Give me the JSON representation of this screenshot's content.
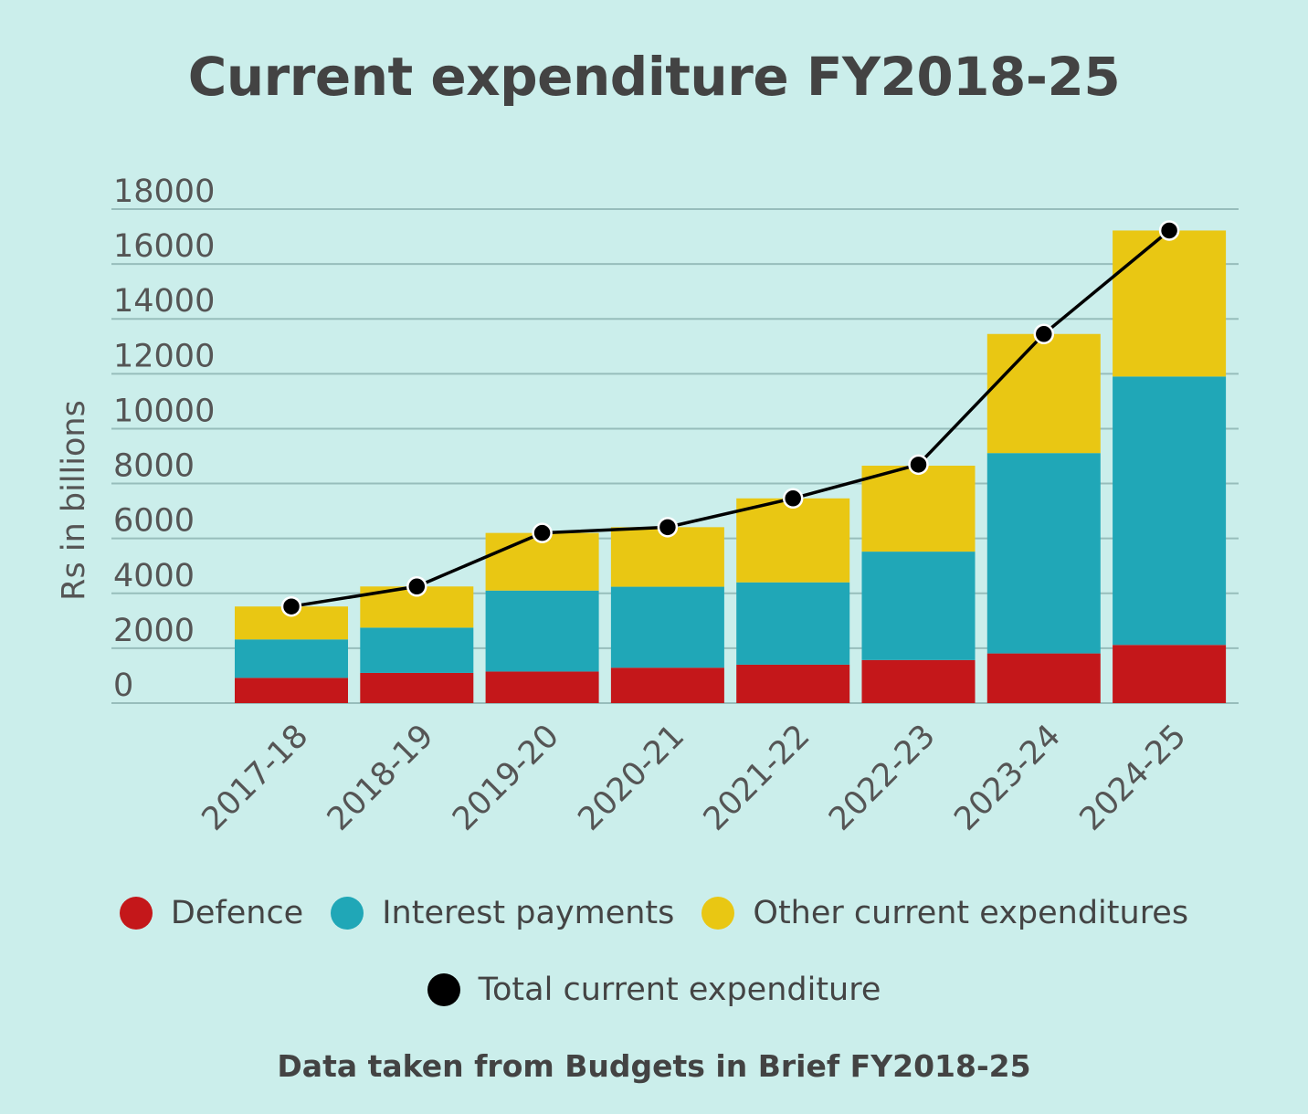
{
  "colors": {
    "background": "#cbeeeb",
    "defence": "#c4171a",
    "interest": "#20a7b7",
    "other": "#e9c713",
    "total": "#000000",
    "grid": "#97bdbb"
  },
  "chart_data": {
    "type": "bar",
    "stacked": true,
    "title": "Current expenditure FY2018-25",
    "ylabel": "Rs in billions",
    "ylim": [
      0,
      18000
    ],
    "yticks": [
      0,
      2000,
      4000,
      6000,
      8000,
      10000,
      12000,
      14000,
      16000,
      18000
    ],
    "categories": [
      "2017-18",
      "2018-19",
      "2019-20",
      "2020-21",
      "2021-22",
      "2022-23",
      "2023-24",
      "2024-25"
    ],
    "series": [
      {
        "name": "Defence",
        "color": "#c4171a",
        "values": [
          920,
          1100,
          1150,
          1290,
          1400,
          1570,
          1810,
          2120
        ]
      },
      {
        "name": "Interest payments",
        "color": "#20a7b7",
        "values": [
          1400,
          1650,
          2950,
          2950,
          3000,
          3950,
          7300,
          9780
        ]
      },
      {
        "name": "Other current expenditures",
        "color": "#e9c713",
        "values": [
          1200,
          1500,
          2100,
          2170,
          3060,
          3130,
          4340,
          5320
        ]
      }
    ],
    "line": {
      "name": "Total current expenditure",
      "color": "#000000",
      "values": [
        3520,
        4250,
        6200,
        6410,
        7460,
        8690,
        13450,
        17220
      ]
    },
    "legend_position": "bottom",
    "grid": true
  },
  "source": "Data taken from Budgets in Brief FY2018-25"
}
